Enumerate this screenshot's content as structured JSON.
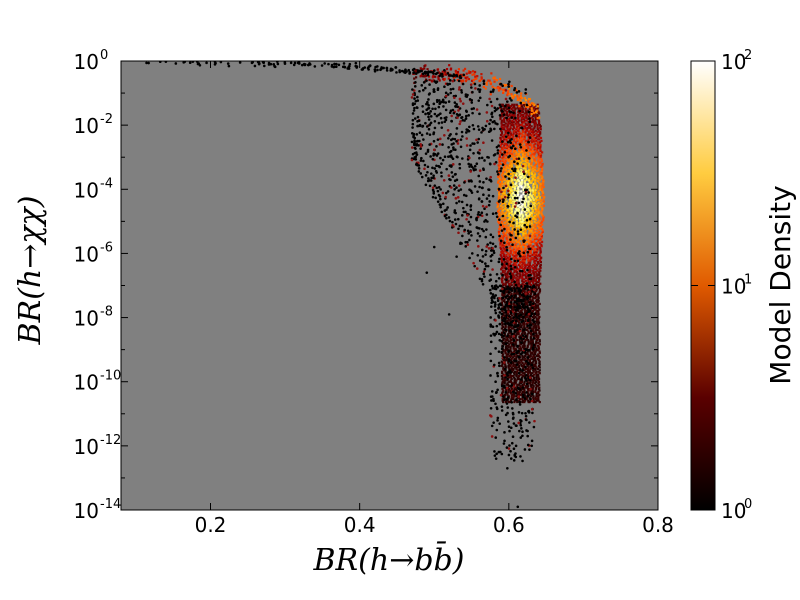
{
  "chart_data": {
    "type": "heatmap",
    "xlabel": "BR(h→b b̄)",
    "ylabel": "BR(h→χχ)",
    "colorbar_label": "Model Density",
    "xlim": [
      0.08,
      0.8
    ],
    "ylim": [
      1e-14,
      1
    ],
    "yscale": "log",
    "x_ticks": [
      "0.2",
      "0.4",
      "0.6",
      "0.8"
    ],
    "y_ticks": [
      {
        "base": "10",
        "exp": "0"
      },
      {
        "base": "10",
        "exp": "-2"
      },
      {
        "base": "10",
        "exp": "-4"
      },
      {
        "base": "10",
        "exp": "-6"
      },
      {
        "base": "10",
        "exp": "-8"
      },
      {
        "base": "10",
        "exp": "-10"
      },
      {
        "base": "10",
        "exp": "-12"
      },
      {
        "base": "10",
        "exp": "-14"
      }
    ],
    "colorbar_ticks": [
      {
        "base": "10",
        "exp": "2"
      },
      {
        "base": "10",
        "exp": "1"
      },
      {
        "base": "10",
        "exp": "0"
      }
    ],
    "colorbar_range": [
      1,
      100
    ],
    "colormap": "afmhot",
    "background_color": "#808080",
    "band": {
      "x_core": [
        0.585,
        0.645
      ],
      "peak_density": 100,
      "peak_log10_y": -4.2,
      "upper_arc": {
        "from_x": 0.1,
        "to_x": 0.64,
        "log10_y_start": -0.1,
        "log10_y_end": -1.7
      },
      "outlier_x_range": [
        0.47,
        0.63
      ],
      "outlier_log10_y_range": [
        -14,
        -2
      ]
    }
  }
}
